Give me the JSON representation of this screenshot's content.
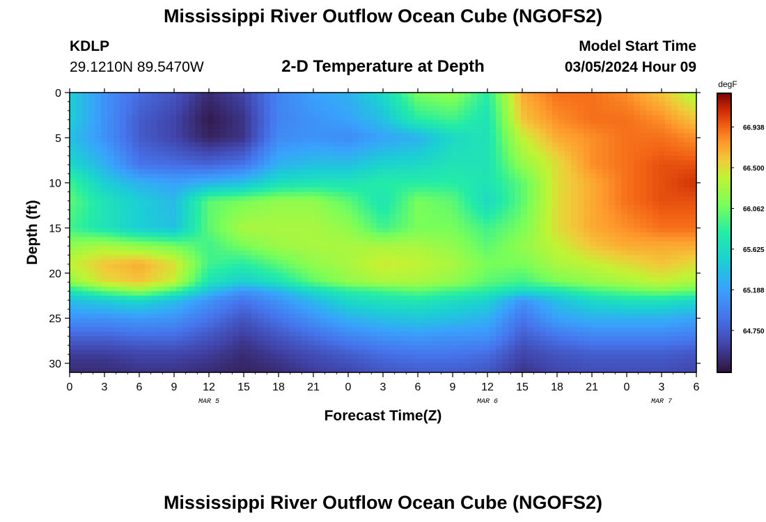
{
  "header": {
    "title": "Mississippi River Outflow Ocean Cube (NGOFS2)",
    "station_id": "KDLP",
    "coordinates": "29.1210N  89.5470W",
    "subtitle": "2-D Temperature at Depth",
    "model_start_label": "Model Start Time",
    "model_start_value": "03/05/2024 Hour 09"
  },
  "footer": {
    "title": "Mississippi River Outflow Ocean Cube (NGOFS2)"
  },
  "colors": {
    "frame": "#000000",
    "background": "#ffffff"
  },
  "chart_data": {
    "type": "heatmap",
    "title": "2-D Temperature at Depth",
    "xlabel": "Forecast Time(Z)",
    "ylabel": "Depth (ft)",
    "x_hours_range": [
      0,
      54
    ],
    "y_range": [
      0,
      31
    ],
    "y_ticks": [
      0,
      5,
      10,
      15,
      20,
      25,
      30
    ],
    "x_ticks": [
      {
        "hour": 0,
        "label": "0"
      },
      {
        "hour": 3,
        "label": "3"
      },
      {
        "hour": 6,
        "label": "6"
      },
      {
        "hour": 9,
        "label": "9"
      },
      {
        "hour": 12,
        "label": "12"
      },
      {
        "hour": 15,
        "label": "15"
      },
      {
        "hour": 18,
        "label": "18"
      },
      {
        "hour": 21,
        "label": "21"
      },
      {
        "hour": 24,
        "label": "0"
      },
      {
        "hour": 27,
        "label": "3"
      },
      {
        "hour": 30,
        "label": "6"
      },
      {
        "hour": 33,
        "label": "9"
      },
      {
        "hour": 36,
        "label": "12"
      },
      {
        "hour": 39,
        "label": "15"
      },
      {
        "hour": 42,
        "label": "18"
      },
      {
        "hour": 45,
        "label": "21"
      },
      {
        "hour": 48,
        "label": "0"
      },
      {
        "hour": 51,
        "label": "3"
      },
      {
        "hour": 54,
        "label": "6"
      }
    ],
    "date_labels": [
      {
        "hour": 12,
        "label": "MAR 5"
      },
      {
        "hour": 36,
        "label": "MAR 6"
      },
      {
        "hour": 51,
        "label": "MAR 7"
      }
    ],
    "colorbar": {
      "unit": "degF",
      "min": 64.3,
      "max": 67.3,
      "tick_values": [
        66.938,
        66.5,
        66.062,
        65.625,
        65.188,
        64.75
      ],
      "tick_labels": [
        "66.938",
        "66.500",
        "66.062",
        "65.625",
        "65.188",
        "64.750"
      ]
    },
    "field_depths": [
      0,
      3,
      5,
      8,
      10,
      12,
      15,
      17,
      19,
      21,
      22,
      23,
      25,
      27,
      29,
      31
    ],
    "field_hours": [
      0,
      3,
      6,
      9,
      12,
      15,
      18,
      21,
      24,
      27,
      30,
      33,
      36,
      39,
      42,
      45,
      48,
      51,
      54
    ],
    "field_values": [
      [
        65.5,
        65.1,
        64.85,
        64.7,
        64.45,
        64.6,
        65.0,
        65.2,
        65.3,
        65.6,
        66.1,
        66.2,
        65.8,
        66.7,
        66.9,
        66.9,
        66.8,
        66.6,
        66.3
      ],
      [
        65.5,
        65.1,
        64.75,
        64.6,
        64.35,
        64.5,
        65.0,
        65.1,
        65.2,
        65.4,
        65.8,
        65.9,
        65.7,
        66.6,
        66.8,
        66.9,
        66.9,
        66.8,
        66.6
      ],
      [
        65.4,
        65.1,
        64.75,
        64.6,
        64.4,
        64.5,
        65.05,
        65.1,
        65.05,
        65.2,
        65.3,
        65.6,
        65.7,
        66.4,
        66.7,
        66.8,
        66.9,
        66.9,
        66.8
      ],
      [
        65.6,
        65.3,
        64.9,
        64.85,
        64.8,
        64.9,
        65.3,
        65.4,
        65.4,
        65.55,
        65.6,
        65.7,
        65.7,
        66.2,
        66.5,
        66.8,
        66.9,
        67.0,
        67.0
      ],
      [
        65.9,
        65.5,
        65.3,
        65.2,
        65.3,
        65.4,
        65.65,
        65.7,
        65.7,
        65.8,
        65.8,
        65.8,
        65.7,
        66.0,
        66.5,
        66.7,
        66.9,
        67.0,
        67.1
      ],
      [
        66.0,
        65.7,
        65.5,
        65.35,
        66.0,
        66.1,
        66.2,
        66.2,
        66.0,
        65.7,
        66.1,
        66.0,
        65.6,
        66.0,
        66.5,
        66.7,
        66.9,
        67.0,
        67.0
      ],
      [
        65.9,
        65.7,
        65.5,
        65.4,
        66.0,
        66.3,
        66.3,
        66.3,
        66.2,
        65.9,
        66.1,
        66.1,
        65.9,
        66.1,
        66.5,
        66.7,
        66.8,
        66.9,
        66.9
      ],
      [
        66.2,
        66.3,
        66.2,
        66.1,
        65.9,
        66.1,
        66.25,
        66.3,
        66.3,
        66.3,
        66.3,
        66.2,
        66.0,
        66.2,
        66.4,
        66.6,
        66.7,
        66.7,
        66.7
      ],
      [
        66.4,
        66.6,
        66.7,
        66.5,
        65.9,
        65.8,
        66.0,
        66.2,
        66.3,
        66.45,
        66.4,
        66.3,
        66.1,
        66.1,
        66.3,
        66.4,
        66.5,
        66.6,
        66.5
      ],
      [
        66.2,
        66.5,
        66.6,
        66.4,
        65.7,
        65.5,
        65.7,
        66.0,
        66.2,
        66.3,
        66.3,
        66.2,
        66.0,
        65.9,
        66.1,
        66.2,
        66.3,
        66.4,
        66.3
      ],
      [
        65.7,
        66.0,
        66.2,
        65.9,
        65.4,
        65.1,
        65.3,
        65.6,
        65.8,
        65.9,
        66.0,
        65.9,
        65.8,
        65.6,
        65.7,
        65.9,
        66.0,
        66.1,
        66.0
      ],
      [
        65.4,
        65.5,
        65.6,
        65.4,
        65.1,
        64.9,
        65.1,
        65.35,
        65.6,
        65.7,
        65.75,
        65.65,
        65.55,
        65.1,
        65.4,
        65.6,
        65.7,
        65.7,
        65.6
      ],
      [
        65.1,
        65.1,
        65.15,
        65.1,
        64.9,
        64.7,
        64.9,
        65.1,
        65.3,
        65.4,
        65.45,
        65.4,
        65.3,
        64.9,
        65.2,
        65.3,
        65.3,
        65.3,
        65.2
      ],
      [
        64.8,
        64.8,
        64.85,
        64.85,
        64.7,
        64.55,
        64.7,
        64.85,
        65.0,
        65.1,
        65.15,
        65.1,
        65.1,
        64.75,
        64.9,
        65.0,
        65.0,
        65.0,
        64.95
      ],
      [
        64.55,
        64.55,
        64.6,
        64.6,
        64.55,
        64.45,
        64.55,
        64.65,
        64.75,
        64.85,
        64.9,
        64.9,
        64.85,
        64.6,
        64.7,
        64.75,
        64.75,
        64.75,
        64.7
      ],
      [
        64.45,
        64.45,
        64.5,
        64.5,
        64.45,
        64.4,
        64.45,
        64.55,
        64.6,
        64.7,
        64.75,
        64.75,
        64.7,
        64.5,
        64.6,
        64.65,
        64.65,
        64.65,
        64.6
      ]
    ]
  }
}
